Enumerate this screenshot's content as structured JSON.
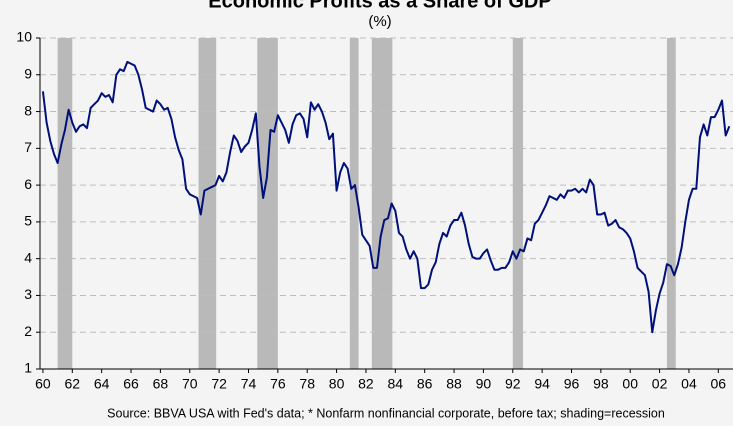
{
  "chart_data": {
    "type": "line",
    "title": "Economic Profits as a Share of GDP",
    "subtitle": "(%)",
    "source": "Source: BBVA USA with Fed's data; * Nonfarm nonfinancial corporate, before tax; shading=recession",
    "x": [
      1960,
      1960.25,
      1960.5,
      1960.75,
      1961,
      1961.25,
      1961.5,
      1961.75,
      1962,
      1962.25,
      1962.5,
      1962.75,
      1963,
      1963.25,
      1963.5,
      1963.75,
      1964,
      1964.25,
      1964.5,
      1964.75,
      1965,
      1965.25,
      1965.5,
      1965.75,
      1966,
      1966.25,
      1966.5,
      1966.75,
      1967,
      1967.25,
      1967.5,
      1967.75,
      1968,
      1968.25,
      1968.5,
      1968.75,
      1969,
      1969.25,
      1969.5,
      1969.75,
      1970,
      1970.25,
      1970.5,
      1970.75,
      1971,
      1971.25,
      1971.5,
      1971.75,
      1972,
      1972.25,
      1972.5,
      1972.75,
      1973,
      1973.25,
      1973.5,
      1973.75,
      1974,
      1974.25,
      1974.5,
      1974.75,
      1975,
      1975.25,
      1975.5,
      1975.75,
      1976,
      1976.25,
      1976.5,
      1976.75,
      1977,
      1977.25,
      1977.5,
      1977.75,
      1978,
      1978.25,
      1978.5,
      1978.75,
      1979,
      1979.25,
      1979.5,
      1979.75,
      1980,
      1980.25,
      1980.5,
      1980.75,
      1981,
      1981.25,
      1981.5,
      1981.75,
      1982,
      1982.25,
      1982.5,
      1982.75,
      1983,
      1983.25,
      1983.5,
      1983.75,
      1984,
      1984.25,
      1984.5,
      1984.75,
      1985,
      1985.25,
      1985.5,
      1985.75,
      1986,
      1986.25,
      1986.5,
      1986.75,
      1987,
      1987.25,
      1987.5,
      1987.75,
      1988,
      1988.25,
      1988.5,
      1988.75,
      1989,
      1989.25,
      1989.5,
      1989.75,
      1990,
      1990.25,
      1990.5,
      1990.75,
      1991,
      1991.25,
      1991.5,
      1991.75,
      1992,
      1992.25,
      1992.5,
      1992.75,
      1993,
      1993.25,
      1993.5,
      1993.75,
      1994,
      1994.25,
      1994.5,
      1994.75,
      1995,
      1995.25,
      1995.5,
      1995.75,
      1996,
      1996.25,
      1996.5,
      1996.75,
      1997,
      1997.25,
      1997.5,
      1997.75,
      1998,
      1998.25,
      1998.5,
      1998.75,
      1999,
      1999.25,
      1999.5,
      1999.75,
      2000,
      2000.25,
      2000.5,
      2000.75,
      2001,
      2001.25,
      2001.5,
      2001.75,
      2002,
      2002.25,
      2002.5,
      2002.75,
      2003,
      2003.25,
      2003.5,
      2003.75,
      2004,
      2004.25,
      2004.5,
      2004.75,
      2005,
      2005.25,
      2005.5,
      2005.75,
      2006,
      2006.25,
      2006.5,
      2006.75
    ],
    "series": [
      {
        "color": "#00107a",
        "values": [
          8.55,
          7.7,
          7.2,
          6.85,
          6.6,
          7.1,
          7.5,
          8.05,
          7.7,
          7.45,
          7.6,
          7.65,
          7.55,
          8.1,
          8.2,
          8.3,
          8.5,
          8.4,
          8.45,
          8.25,
          9.0,
          9.15,
          9.1,
          9.35,
          9.3,
          9.25,
          9.0,
          8.6,
          8.1,
          8.05,
          8.0,
          8.3,
          8.2,
          8.05,
          8.1,
          7.8,
          7.3,
          6.95,
          6.7,
          5.9,
          5.75,
          5.7,
          5.65,
          5.2,
          5.85,
          5.9,
          5.95,
          6.0,
          6.25,
          6.1,
          6.35,
          6.9,
          7.35,
          7.2,
          6.9,
          7.05,
          7.15,
          7.5,
          7.95,
          6.5,
          5.65,
          6.2,
          7.5,
          7.45,
          7.9,
          7.7,
          7.5,
          7.15,
          7.65,
          7.9,
          7.95,
          7.8,
          7.3,
          8.25,
          8.05,
          8.2,
          8.0,
          7.7,
          7.25,
          7.4,
          5.85,
          6.35,
          6.6,
          6.45,
          5.9,
          6.0,
          5.4,
          4.65,
          4.5,
          4.35,
          3.75,
          3.75,
          4.6,
          5.05,
          5.1,
          5.5,
          5.3,
          4.7,
          4.6,
          4.25,
          4.0,
          4.2,
          4.0,
          3.2,
          3.2,
          3.3,
          3.7,
          3.9,
          4.4,
          4.7,
          4.6,
          4.9,
          5.05,
          5.05,
          5.25,
          4.9,
          4.4,
          4.05,
          4.0,
          4.0,
          4.15,
          4.25,
          3.95,
          3.7,
          3.7,
          3.75,
          3.75,
          3.9,
          4.2,
          4.0,
          4.25,
          4.2,
          4.55,
          4.5,
          4.95,
          5.05,
          5.25,
          5.45,
          5.7,
          5.65,
          5.6,
          5.75,
          5.65,
          5.85,
          5.85,
          5.9,
          5.8,
          5.9,
          5.8,
          6.15,
          6.0,
          5.2,
          5.2,
          5.25,
          4.9,
          4.95,
          5.05,
          4.85,
          4.8,
          4.7,
          4.55,
          4.2,
          3.75,
          3.65,
          3.55,
          3.1,
          2.0,
          2.6,
          3.05,
          3.35,
          3.85,
          3.8,
          3.55,
          3.85,
          4.3,
          5.0,
          5.6,
          5.9,
          5.9,
          7.3,
          7.65,
          7.35,
          7.85,
          7.85,
          8.05,
          8.3,
          7.35,
          7.6
        ]
      }
    ],
    "recessions": [
      [
        1961.0,
        1962.0
      ],
      [
        1970.6,
        1971.8
      ],
      [
        1974.6,
        1976.0
      ],
      [
        1980.9,
        1981.5
      ],
      [
        1982.4,
        1983.8
      ],
      [
        1992.0,
        1992.7
      ],
      [
        2002.5,
        2003.1
      ]
    ],
    "recession_color": "#b9b9b9",
    "xlim": [
      1959.8,
      2007.0
    ],
    "xticks": [
      {
        "value": 1960,
        "label": "60"
      },
      {
        "value": 1962,
        "label": "62"
      },
      {
        "value": 1964,
        "label": "64"
      },
      {
        "value": 1966,
        "label": "66"
      },
      {
        "value": 1968,
        "label": "68"
      },
      {
        "value": 1970,
        "label": "70"
      },
      {
        "value": 1972,
        "label": "72"
      },
      {
        "value": 1974,
        "label": "74"
      },
      {
        "value": 1976,
        "label": "76"
      },
      {
        "value": 1978,
        "label": "78"
      },
      {
        "value": 1980,
        "label": "80"
      },
      {
        "value": 1982,
        "label": "82"
      },
      {
        "value": 1984,
        "label": "84"
      },
      {
        "value": 1986,
        "label": "86"
      },
      {
        "value": 1988,
        "label": "88"
      },
      {
        "value": 1990,
        "label": "90"
      },
      {
        "value": 1992,
        "label": "92"
      },
      {
        "value": 1994,
        "label": "94"
      },
      {
        "value": 1996,
        "label": "96"
      },
      {
        "value": 1998,
        "label": "98"
      },
      {
        "value": 2000,
        "label": "00"
      },
      {
        "value": 2002,
        "label": "02"
      },
      {
        "value": 2004,
        "label": "04"
      },
      {
        "value": 2006,
        "label": "06"
      }
    ],
    "ylim": [
      1,
      10
    ],
    "yticks": [
      1,
      2,
      3,
      4,
      5,
      6,
      7,
      8,
      9,
      10
    ],
    "grid": true
  }
}
